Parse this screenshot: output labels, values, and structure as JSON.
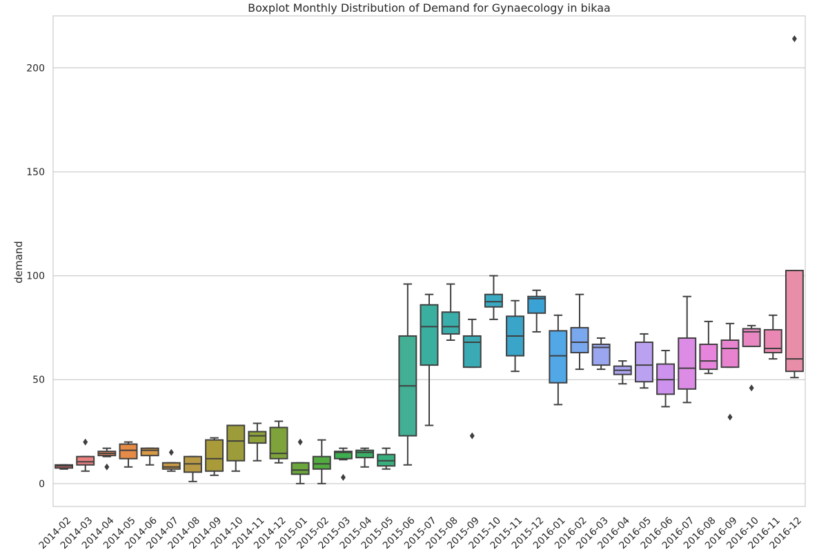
{
  "chart_data": {
    "type": "box",
    "title": "Boxplot Monthly Distribution of Demand for Gynaecology in bikaa",
    "xlabel": "",
    "ylabel": "demand",
    "ylim": [
      -11,
      225
    ],
    "yticks": [
      0,
      50,
      100,
      150,
      200
    ],
    "grid": "horizontal",
    "categories": [
      "2014-02",
      "2014-03",
      "2014-04",
      "2014-05",
      "2014-06",
      "2014-07",
      "2014-08",
      "2014-09",
      "2014-10",
      "2014-11",
      "2014-12",
      "2015-01",
      "2015-02",
      "2015-03",
      "2015-04",
      "2015-05",
      "2015-06",
      "2015-07",
      "2015-08",
      "2015-09",
      "2015-10",
      "2015-11",
      "2015-12",
      "2016-01",
      "2016-02",
      "2016-03",
      "2016-04",
      "2016-05",
      "2016-06",
      "2016-07",
      "2016-08",
      "2016-09",
      "2016-10",
      "2016-11",
      "2016-12"
    ],
    "boxes": [
      {
        "whislo": 7,
        "q1": 7.5,
        "med": 8.5,
        "q3": 9,
        "whishi": 9,
        "fliers": [],
        "color": "#e06c6c"
      },
      {
        "whislo": 6,
        "q1": 9,
        "med": 10.5,
        "q3": 13,
        "whishi": 13,
        "fliers": [
          20
        ],
        "color": "#e88081"
      },
      {
        "whislo": 13,
        "q1": 13.5,
        "med": 14.5,
        "q3": 15.5,
        "whishi": 17,
        "fliers": [
          8
        ],
        "color": "#e8845c"
      },
      {
        "whislo": 8,
        "q1": 12,
        "med": 16,
        "q3": 19,
        "whishi": 20,
        "fliers": [],
        "color": "#e68a47"
      },
      {
        "whislo": 9,
        "q1": 13.5,
        "med": 16,
        "q3": 17,
        "whishi": 17,
        "fliers": [],
        "color": "#d99a45"
      },
      {
        "whislo": 6,
        "q1": 7,
        "med": 8,
        "q3": 10,
        "whishi": 10,
        "fliers": [
          15
        ],
        "color": "#c99a45"
      },
      {
        "whislo": 1,
        "q1": 5.5,
        "med": 9.5,
        "q3": 13,
        "whishi": 13,
        "fliers": [],
        "color": "#b89a45"
      },
      {
        "whislo": 4,
        "q1": 6,
        "med": 12,
        "q3": 21,
        "whishi": 22,
        "fliers": [],
        "color": "#aa9b3a"
      },
      {
        "whislo": 6,
        "q1": 11,
        "med": 20.5,
        "q3": 28,
        "whishi": 28,
        "fliers": [],
        "color": "#9c9d3a"
      },
      {
        "whislo": 11,
        "q1": 19.5,
        "med": 23,
        "q3": 25,
        "whishi": 29,
        "fliers": [],
        "color": "#8ea03a"
      },
      {
        "whislo": 10,
        "q1": 12,
        "med": 14.5,
        "q3": 27,
        "whishi": 30,
        "fliers": [],
        "color": "#7ea33b"
      },
      {
        "whislo": 0,
        "q1": 4.5,
        "med": 6.5,
        "q3": 10,
        "whishi": 10,
        "fliers": [
          20
        ],
        "color": "#6aa63b"
      },
      {
        "whislo": 0,
        "q1": 7,
        "med": 9.5,
        "q3": 13,
        "whishi": 21,
        "fliers": [],
        "color": "#52aa40"
      },
      {
        "whislo": 11.5,
        "q1": 12,
        "med": 15,
        "q3": 15.5,
        "whishi": 17,
        "fliers": [
          3
        ],
        "color": "#3dae4f"
      },
      {
        "whislo": 8,
        "q1": 12.5,
        "med": 15,
        "q3": 16,
        "whishi": 17,
        "fliers": [],
        "color": "#3aaf66"
      },
      {
        "whislo": 7,
        "q1": 8.5,
        "med": 11,
        "q3": 14,
        "whishi": 17,
        "fliers": [],
        "color": "#3aaf7e"
      },
      {
        "whislo": 9,
        "q1": 23,
        "med": 47,
        "q3": 71,
        "whishi": 96,
        "fliers": [],
        "color": "#43af95"
      },
      {
        "whislo": 28,
        "q1": 57,
        "med": 75.5,
        "q3": 86,
        "whishi": 91,
        "fliers": [],
        "color": "#3aafa0"
      },
      {
        "whislo": 69,
        "q1": 72,
        "med": 75.5,
        "q3": 82.5,
        "whishi": 96,
        "fliers": [],
        "color": "#3aaeab"
      },
      {
        "whislo": 56,
        "q1": 56,
        "med": 68,
        "q3": 71,
        "whishi": 79,
        "fliers": [
          23
        ],
        "color": "#3aabb5"
      },
      {
        "whislo": 79,
        "q1": 85,
        "med": 87.5,
        "q3": 91,
        "whishi": 100,
        "fliers": [],
        "color": "#39aac2"
      },
      {
        "whislo": 54,
        "q1": 61.5,
        "med": 71,
        "q3": 80.5,
        "whishi": 88,
        "fliers": [],
        "color": "#3aa5c9"
      },
      {
        "whislo": 73,
        "q1": 82,
        "med": 89,
        "q3": 90,
        "whishi": 93,
        "fliers": [],
        "color": "#3aa2d4"
      },
      {
        "whislo": 38,
        "q1": 48.5,
        "med": 61.5,
        "q3": 73.5,
        "whishi": 81,
        "fliers": [],
        "color": "#52a8e6"
      },
      {
        "whislo": 55,
        "q1": 63,
        "med": 68,
        "q3": 75,
        "whishi": 91,
        "fliers": [],
        "color": "#7aa8ef"
      },
      {
        "whislo": 55,
        "q1": 57,
        "med": 65.5,
        "q3": 67,
        "whishi": 70,
        "fliers": [],
        "color": "#9aa7f0"
      },
      {
        "whislo": 48,
        "q1": 52.5,
        "med": 54.5,
        "q3": 56.5,
        "whishi": 59,
        "fliers": [],
        "color": "#aba4f0"
      },
      {
        "whislo": 46,
        "q1": 49,
        "med": 57,
        "q3": 68,
        "whishi": 72,
        "fliers": [],
        "color": "#baa2f0"
      },
      {
        "whislo": 37,
        "q1": 43,
        "med": 50,
        "q3": 57.5,
        "whishi": 64,
        "fliers": [],
        "color": "#cd92ee"
      },
      {
        "whislo": 39,
        "q1": 45.5,
        "med": 55.5,
        "q3": 70,
        "whishi": 90,
        "fliers": [],
        "color": "#dd8ce6"
      },
      {
        "whislo": 53,
        "q1": 55,
        "med": 59,
        "q3": 67,
        "whishi": 78,
        "fliers": [],
        "color": "#e784db"
      },
      {
        "whislo": 56,
        "q1": 56,
        "med": 65,
        "q3": 69,
        "whishi": 77,
        "fliers": [
          32
        ],
        "color": "#e884cf"
      },
      {
        "whislo": 66,
        "q1": 66,
        "med": 73,
        "q3": 74.5,
        "whishi": 76,
        "fliers": [
          46
        ],
        "color": "#e887c1"
      },
      {
        "whislo": 60,
        "q1": 63,
        "med": 65,
        "q3": 74,
        "whishi": 81,
        "fliers": [],
        "color": "#ea88b3"
      },
      {
        "whislo": 51,
        "q1": 54,
        "med": 60,
        "q3": 102.5,
        "whishi": 102.5,
        "fliers": [
          214
        ],
        "color": "#e88ea9"
      }
    ]
  }
}
